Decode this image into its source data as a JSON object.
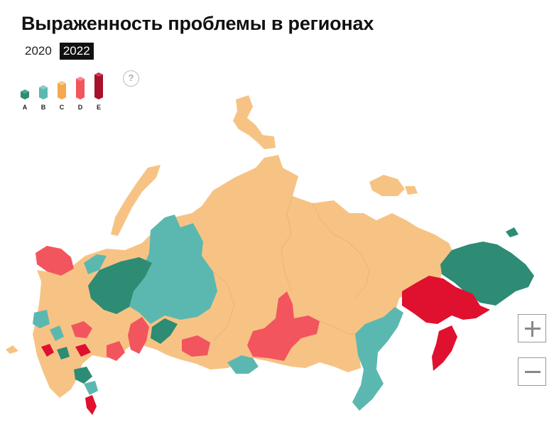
{
  "title": "Выраженность проблемы в регионах",
  "years": [
    {
      "label": "2020",
      "active": false
    },
    {
      "label": "2022",
      "active": true
    }
  ],
  "legend": [
    {
      "label": "A",
      "color": "#2e8b74"
    },
    {
      "label": "B",
      "color": "#5bb8b0"
    },
    {
      "label": "C",
      "color": "#f7c384"
    },
    {
      "label": "D",
      "color": "#f2555e"
    },
    {
      "label": "E",
      "color": "#a8102b"
    }
  ],
  "help_label": "?",
  "zoom": {
    "in_icon": "plus-icon",
    "out_icon": "minus-icon"
  }
}
